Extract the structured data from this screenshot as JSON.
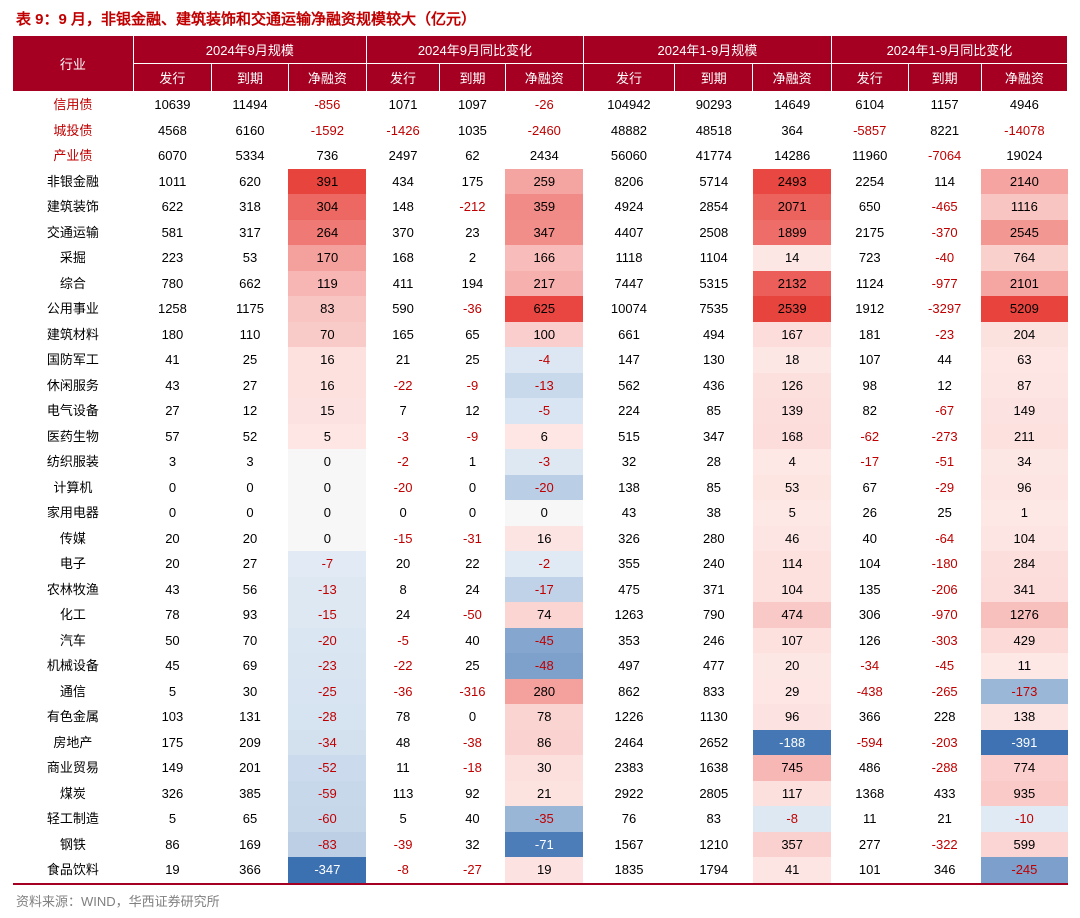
{
  "title": "表 9：9 月，非银金融、建筑装饰和交通运输净融资规模较大（亿元）",
  "source": "资料来源：WIND，华西证券研究所",
  "header": {
    "rowLabel": "行业",
    "groups": [
      "2024年9月规模",
      "2024年9月同比变化",
      "2024年1-9月规模",
      "2024年1-9月同比变化"
    ],
    "subs": [
      "发行",
      "到期",
      "净融资"
    ]
  },
  "colors": {
    "header_bg": "#a50021",
    "header_fg": "#ffffff",
    "title_fg": "#c00000",
    "neg_fg": "#c00000",
    "source_fg": "#808080",
    "heat_pos_max": "#e8403a",
    "heat_pos_mid": "#f4a6a0",
    "heat_pos_min": "#fde8e6",
    "heat_neg_max": "#3a6fb0",
    "heat_neg_mid": "#9bb8d8",
    "heat_neg_min": "#e4edf6",
    "white": "#ffffff"
  },
  "font": {
    "title_pt": 15,
    "body_pt": 13
  },
  "heatColumns": [
    2,
    5,
    8,
    11
  ],
  "heatRanges": {
    "2": {
      "posMax": 400,
      "negMax": 350
    },
    "5": {
      "posMax": 650,
      "negMax": 80
    },
    "8": {
      "posMax": 2600,
      "negMax": 200
    },
    "11": {
      "posMax": 5300,
      "negMax": 400
    }
  },
  "rows": [
    {
      "label": "信用债",
      "red": true,
      "heat": false,
      "cells": [
        10639,
        11494,
        -856,
        1071,
        1097,
        -26,
        104942,
        90293,
        14649,
        6104,
        1157,
        4946
      ]
    },
    {
      "label": "城投债",
      "red": true,
      "heat": false,
      "cells": [
        4568,
        6160,
        -1592,
        -1426,
        1035,
        -2460,
        48882,
        48518,
        364,
        -5857,
        8221,
        -14078
      ]
    },
    {
      "label": "产业债",
      "red": true,
      "heat": false,
      "cells": [
        6070,
        5334,
        736,
        2497,
        62,
        2434,
        56060,
        41774,
        14286,
        11960,
        -7064,
        19024
      ]
    },
    {
      "label": "非银金融",
      "red": false,
      "heat": true,
      "cells": [
        1011,
        620,
        391,
        434,
        175,
        259,
        8206,
        5714,
        2493,
        2254,
        114,
        2140
      ]
    },
    {
      "label": "建筑装饰",
      "red": false,
      "heat": true,
      "cells": [
        622,
        318,
        304,
        148,
        -212,
        359,
        4924,
        2854,
        2071,
        650,
        -465,
        1116
      ]
    },
    {
      "label": "交通运输",
      "red": false,
      "heat": true,
      "cells": [
        581,
        317,
        264,
        370,
        23,
        347,
        4407,
        2508,
        1899,
        2175,
        -370,
        2545
      ]
    },
    {
      "label": "采掘",
      "red": false,
      "heat": true,
      "cells": [
        223,
        53,
        170,
        168,
        2,
        166,
        1118,
        1104,
        14,
        723,
        -40,
        764
      ]
    },
    {
      "label": "综合",
      "red": false,
      "heat": true,
      "cells": [
        780,
        662,
        119,
        411,
        194,
        217,
        7447,
        5315,
        2132,
        1124,
        -977,
        2101
      ]
    },
    {
      "label": "公用事业",
      "red": false,
      "heat": true,
      "cells": [
        1258,
        1175,
        83,
        590,
        -36,
        625,
        10074,
        7535,
        2539,
        1912,
        -3297,
        5209
      ]
    },
    {
      "label": "建筑材料",
      "red": false,
      "heat": true,
      "cells": [
        180,
        110,
        70,
        165,
        65,
        100,
        661,
        494,
        167,
        181,
        -23,
        204
      ]
    },
    {
      "label": "国防军工",
      "red": false,
      "heat": true,
      "cells": [
        41,
        25,
        16,
        21,
        25,
        -4,
        147,
        130,
        18,
        107,
        44,
        63
      ]
    },
    {
      "label": "休闲服务",
      "red": false,
      "heat": true,
      "cells": [
        43,
        27,
        16,
        -22,
        -9,
        -13,
        562,
        436,
        126,
        98,
        12,
        87
      ]
    },
    {
      "label": "电气设备",
      "red": false,
      "heat": true,
      "cells": [
        27,
        12,
        15,
        7,
        12,
        -5,
        224,
        85,
        139,
        82,
        -67,
        149
      ]
    },
    {
      "label": "医药生物",
      "red": false,
      "heat": true,
      "cells": [
        57,
        52,
        5,
        -3,
        -9,
        6,
        515,
        347,
        168,
        -62,
        -273,
        211
      ]
    },
    {
      "label": "纺织服装",
      "red": false,
      "heat": true,
      "cells": [
        3,
        3,
        0,
        -2,
        1,
        -3,
        32,
        28,
        4,
        -17,
        -51,
        34
      ]
    },
    {
      "label": "计算机",
      "red": false,
      "heat": true,
      "cells": [
        0,
        0,
        0,
        -20,
        0,
        -20,
        138,
        85,
        53,
        67,
        -29,
        96
      ]
    },
    {
      "label": "家用电器",
      "red": false,
      "heat": true,
      "cells": [
        0,
        0,
        0,
        0,
        0,
        0,
        43,
        38,
        5,
        26,
        25,
        1
      ]
    },
    {
      "label": "传媒",
      "red": false,
      "heat": true,
      "cells": [
        20,
        20,
        0,
        -15,
        -31,
        16,
        326,
        280,
        46,
        40,
        -64,
        104
      ]
    },
    {
      "label": "电子",
      "red": false,
      "heat": true,
      "cells": [
        20,
        27,
        -7,
        20,
        22,
        -2,
        355,
        240,
        114,
        104,
        -180,
        284
      ]
    },
    {
      "label": "农林牧渔",
      "red": false,
      "heat": true,
      "cells": [
        43,
        56,
        -13,
        8,
        24,
        -17,
        475,
        371,
        104,
        135,
        -206,
        341
      ]
    },
    {
      "label": "化工",
      "red": false,
      "heat": true,
      "cells": [
        78,
        93,
        -15,
        24,
        -50,
        74,
        1263,
        790,
        474,
        306,
        -970,
        1276
      ]
    },
    {
      "label": "汽车",
      "red": false,
      "heat": true,
      "cells": [
        50,
        70,
        -20,
        -5,
        40,
        -45,
        353,
        246,
        107,
        126,
        -303,
        429
      ]
    },
    {
      "label": "机械设备",
      "red": false,
      "heat": true,
      "cells": [
        45,
        69,
        -23,
        -22,
        25,
        -48,
        497,
        477,
        20,
        -34,
        -45,
        11
      ]
    },
    {
      "label": "通信",
      "red": false,
      "heat": true,
      "cells": [
        5,
        30,
        -25,
        -36,
        -316,
        280,
        862,
        833,
        29,
        -438,
        -265,
        -173
      ]
    },
    {
      "label": "有色金属",
      "red": false,
      "heat": true,
      "cells": [
        103,
        131,
        -28,
        78,
        0,
        78,
        1226,
        1130,
        96,
        366,
        228,
        138
      ]
    },
    {
      "label": "房地产",
      "red": false,
      "heat": true,
      "cells": [
        175,
        209,
        -34,
        48,
        -38,
        86,
        2464,
        2652,
        -188,
        -594,
        -203,
        -391
      ]
    },
    {
      "label": "商业贸易",
      "red": false,
      "heat": true,
      "cells": [
        149,
        201,
        -52,
        11,
        -18,
        30,
        2383,
        1638,
        745,
        486,
        -288,
        774
      ]
    },
    {
      "label": "煤炭",
      "red": false,
      "heat": true,
      "cells": [
        326,
        385,
        -59,
        113,
        92,
        21,
        2922,
        2805,
        117,
        1368,
        433,
        935
      ]
    },
    {
      "label": "轻工制造",
      "red": false,
      "heat": true,
      "cells": [
        5,
        65,
        -60,
        5,
        40,
        -35,
        76,
        83,
        -8,
        11,
        21,
        -10
      ]
    },
    {
      "label": "钢铁",
      "red": false,
      "heat": true,
      "cells": [
        86,
        169,
        -83,
        -39,
        32,
        -71,
        1567,
        1210,
        357,
        277,
        -322,
        599
      ]
    },
    {
      "label": "食品饮料",
      "red": false,
      "heat": true,
      "cells": [
        19,
        366,
        -347,
        -8,
        -27,
        19,
        1835,
        1794,
        41,
        101,
        346,
        -245
      ]
    }
  ]
}
